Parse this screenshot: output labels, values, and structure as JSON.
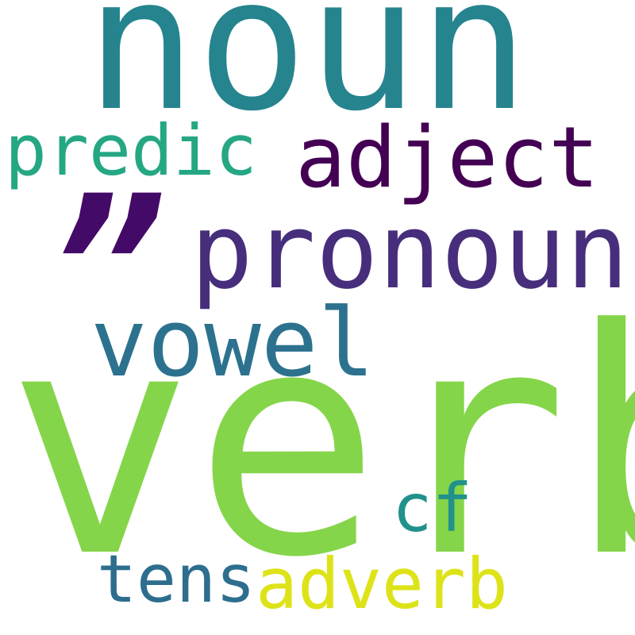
{
  "words": [
    {
      "id": "noun",
      "text": "noun",
      "color": "#26848e"
    },
    {
      "id": "verb",
      "text": "verb",
      "color": "#85d54a"
    },
    {
      "id": "pronoun",
      "text": "pronoun",
      "color": "#472e7c"
    },
    {
      "id": "quote",
      "text": "”",
      "color": "#440a68"
    },
    {
      "id": "adject",
      "text": "adject",
      "color": "#440154"
    },
    {
      "id": "vowel",
      "text": "vowel",
      "color": "#2c728e"
    },
    {
      "id": "predic",
      "text": "predic",
      "color": "#25a784"
    },
    {
      "id": "cf",
      "text": "cf",
      "color": "#21918c"
    },
    {
      "id": "tens",
      "text": "tens",
      "color": "#2d6e8e"
    },
    {
      "id": "adverb",
      "text": "adverb",
      "color": "#dde318"
    }
  ]
}
